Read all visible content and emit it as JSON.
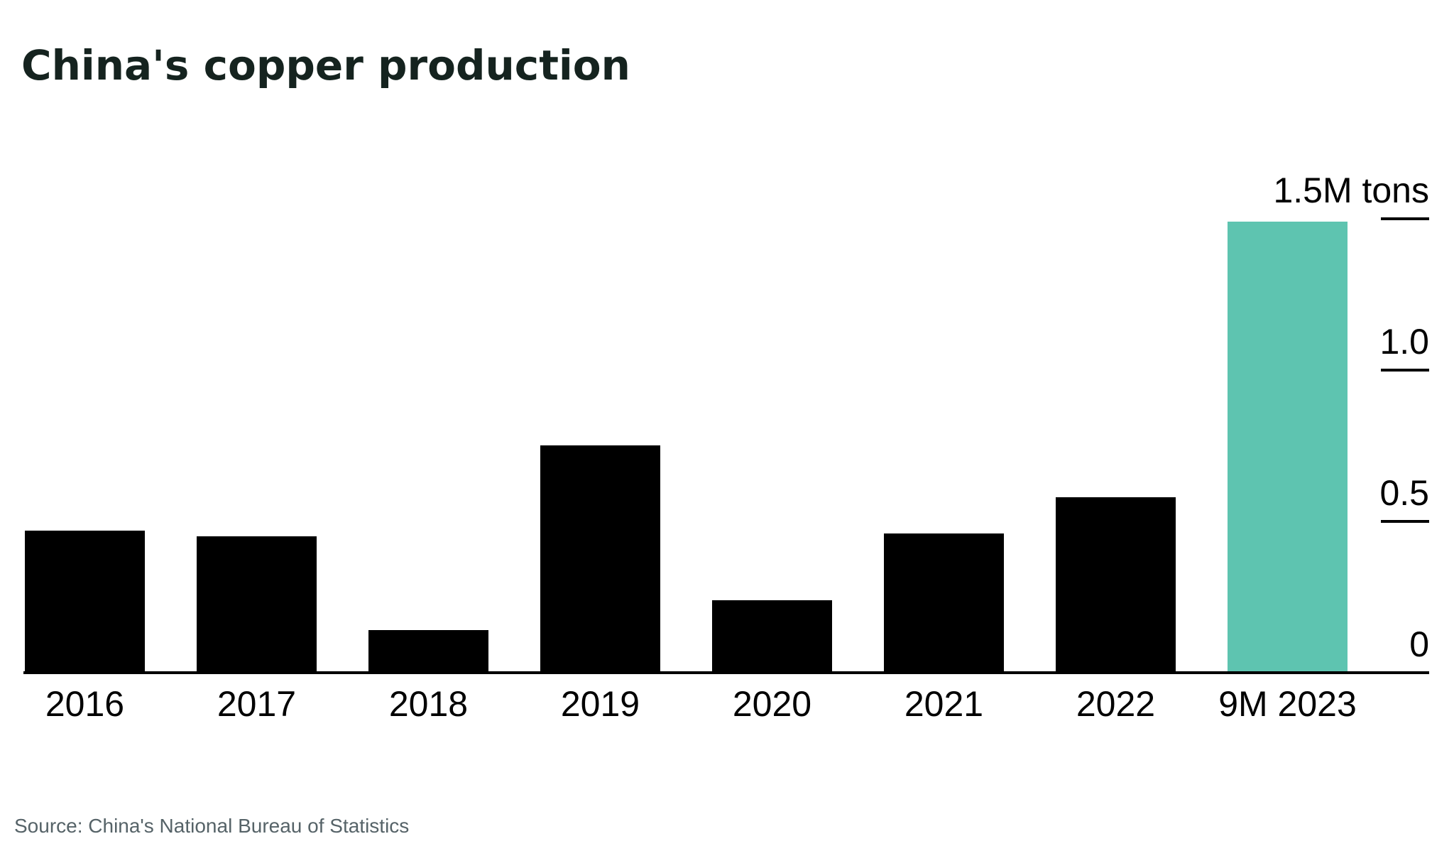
{
  "chart_data": {
    "type": "bar",
    "title": "China's copper production",
    "categories": [
      "2016",
      "2017",
      "2018",
      "2019",
      "2020",
      "2021",
      "2022",
      "9M 2023"
    ],
    "values": [
      0.47,
      0.45,
      0.14,
      0.75,
      0.24,
      0.46,
      0.58,
      1.49
    ],
    "unit": "M tons",
    "highlight_category": "9M 2023",
    "y_axis": {
      "side": "right",
      "range": [
        0,
        1.5
      ],
      "ticks": [
        {
          "value": 1.5,
          "label": "1.5M tons"
        },
        {
          "value": 1.0,
          "label": "1.0"
        },
        {
          "value": 0.5,
          "label": "0.5"
        },
        {
          "value": 0,
          "label": "0"
        }
      ]
    },
    "grid": false,
    "legend": false
  },
  "colors": {
    "background": "#ffffff",
    "bar_default": "#000000",
    "bar_highlight": "#5ec4b0",
    "title_text": "#15231f",
    "axis_text": "#000000",
    "source_text": "#566368"
  },
  "source_note": "Source: China's National Bureau of Statistics"
}
